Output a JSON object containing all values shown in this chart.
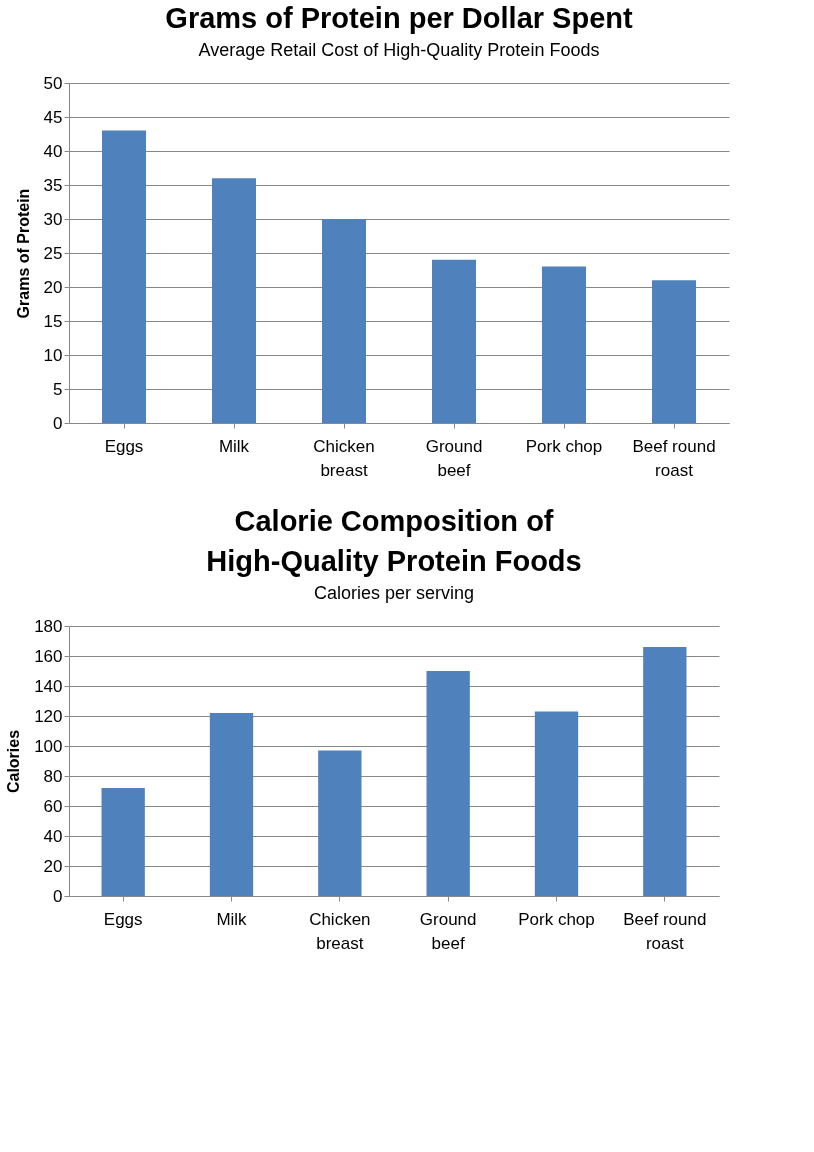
{
  "chart_data": [
    {
      "type": "bar",
      "title": "Grams of Protein per Dollar Spent",
      "subtitle": "Average Retail Cost of High-Quality Protein Foods",
      "ylabel": "Grams of Protein",
      "categories": [
        "Eggs",
        "Milk",
        "Chicken\nbreast",
        "Ground\nbeef",
        "Pork chop",
        "Beef round\nroast"
      ],
      "values": [
        43,
        36,
        30,
        24,
        23,
        21
      ],
      "color": "#4f81bd",
      "ylim": [
        0,
        50
      ],
      "yticks": [
        0,
        5,
        10,
        15,
        20,
        25,
        30,
        35,
        40,
        45,
        50
      ],
      "grid": "y"
    },
    {
      "type": "bar",
      "title": "Calorie Composition of\nHigh-Quality Protein Foods",
      "subtitle": "Calories per serving",
      "ylabel": "Calories",
      "categories": [
        "Eggs",
        "Milk",
        "Chicken\nbreast",
        "Ground\nbeef",
        "Pork chop",
        "Beef round\nroast"
      ],
      "values": [
        72,
        122,
        97,
        150,
        123,
        166
      ],
      "color": "#4f81bd",
      "ylim": [
        0,
        180
      ],
      "yticks": [
        0,
        20,
        40,
        60,
        80,
        100,
        120,
        140,
        160,
        180
      ],
      "grid": "y"
    }
  ]
}
